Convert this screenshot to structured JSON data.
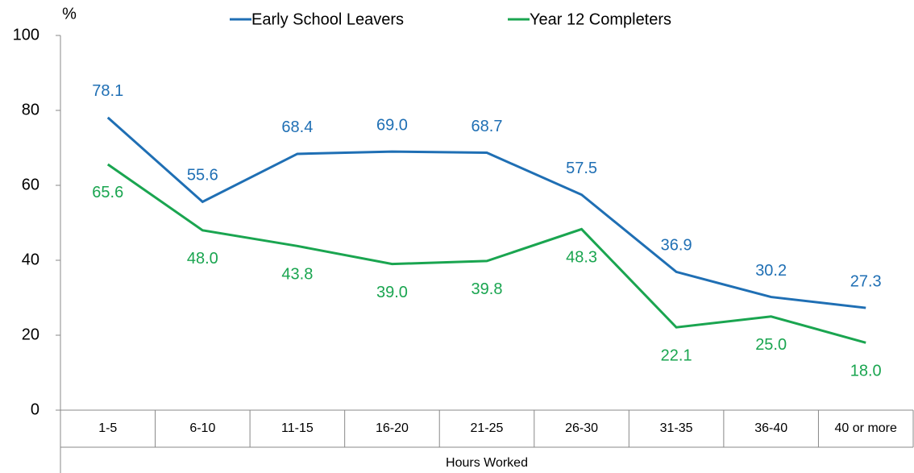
{
  "chart_data": {
    "type": "line",
    "y_label": "%",
    "x_label": "Hours Worked",
    "categories": [
      "1-5",
      "6-10",
      "11-15",
      "16-20",
      "21-25",
      "26-30",
      "31-35",
      "36-40",
      "40 or more"
    ],
    "series": [
      {
        "name": "Early School Leavers",
        "color": "#1f6fb4",
        "values": [
          78.1,
          55.6,
          68.4,
          69,
          68.7,
          57.5,
          36.9,
          30.2,
          27.3
        ],
        "value_labels": [
          "78.1",
          "55.6",
          "68.4",
          "69.0",
          "68.7",
          "57.5",
          "36.9",
          "30.2",
          "27.3"
        ]
      },
      {
        "name": "Year 12 Completers",
        "color": "#1aa550",
        "values": [
          65.6,
          48,
          43.8,
          39,
          39.8,
          48.3,
          22.1,
          25,
          18
        ],
        "value_labels": [
          "65.6",
          "48.0",
          "43.8",
          "39.0",
          "39.8",
          "48.3",
          "22.1",
          "25.0",
          "18.0"
        ]
      }
    ],
    "ylim": [
      0,
      100
    ],
    "yticks": [
      0,
      20,
      40,
      60,
      80,
      100
    ],
    "legend": "top"
  }
}
